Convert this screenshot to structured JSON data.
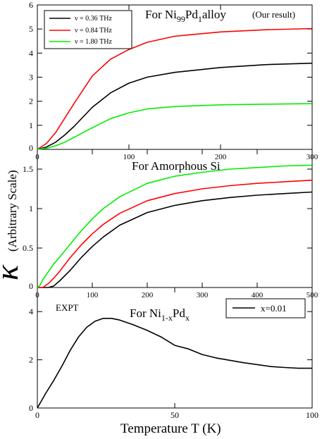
{
  "chart_data": [
    {
      "type": "line",
      "title_main": "For Ni",
      "title_sub1": "99",
      "title_mid": "Pd",
      "title_sub2": "1",
      "title_rest": "alloy",
      "title_note": "(Our result)",
      "xlim": [
        0,
        300
      ],
      "ylim": [
        0,
        6
      ],
      "xticks": [
        0,
        100,
        200,
        300
      ],
      "yticks": [
        0,
        1,
        2,
        3,
        4,
        5,
        6
      ],
      "legend_position": "top-left",
      "series": [
        {
          "name": "ν = 0.36 THz",
          "color": "#000000",
          "x": [
            0,
            10,
            20,
            30,
            40,
            60,
            80,
            100,
            120,
            150,
            200,
            250,
            300
          ],
          "y": [
            0,
            0.1,
            0.3,
            0.6,
            0.95,
            1.75,
            2.35,
            2.75,
            3.0,
            3.2,
            3.4,
            3.52,
            3.58
          ]
        },
        {
          "name": "ν = 0.84 THz",
          "color": "#ff0000",
          "x": [
            0,
            10,
            20,
            30,
            40,
            60,
            80,
            100,
            120,
            150,
            200,
            250,
            300
          ],
          "y": [
            0,
            0.25,
            0.7,
            1.3,
            1.9,
            3.05,
            3.75,
            4.15,
            4.45,
            4.7,
            4.88,
            4.97,
            5.02
          ]
        },
        {
          "name": "ν = 1.80 THz",
          "color": "#00ee00",
          "x": [
            0,
            10,
            20,
            30,
            40,
            60,
            80,
            100,
            120,
            150,
            200,
            250,
            300
          ],
          "y": [
            0,
            0.05,
            0.15,
            0.3,
            0.5,
            0.9,
            1.28,
            1.52,
            1.68,
            1.78,
            1.85,
            1.88,
            1.9
          ]
        }
      ]
    },
    {
      "type": "line",
      "title": "For Amorphous Si",
      "xlim": [
        0,
        500
      ],
      "ylim": [
        0,
        1.75
      ],
      "xticks": [
        0,
        100,
        200,
        300,
        400,
        500
      ],
      "yticks": [
        0,
        0.5,
        1,
        1.5
      ],
      "series": [
        {
          "color": "#000000",
          "x": [
            0,
            20,
            30,
            40,
            60,
            80,
            100,
            120,
            150,
            200,
            250,
            300,
            350,
            400,
            450,
            500
          ],
          "y": [
            0,
            0,
            0.02,
            0.08,
            0.22,
            0.38,
            0.52,
            0.64,
            0.79,
            0.95,
            1.04,
            1.1,
            1.14,
            1.17,
            1.19,
            1.21
          ]
        },
        {
          "color": "#ff0000",
          "x": [
            0,
            10,
            20,
            30,
            40,
            60,
            80,
            100,
            120,
            150,
            200,
            250,
            300,
            350,
            400,
            450,
            500
          ],
          "y": [
            0,
            0,
            0.05,
            0.12,
            0.2,
            0.38,
            0.54,
            0.68,
            0.8,
            0.94,
            1.1,
            1.19,
            1.25,
            1.29,
            1.32,
            1.34,
            1.36
          ]
        },
        {
          "color": "#00ee00",
          "x": [
            0,
            5,
            10,
            20,
            30,
            40,
            60,
            80,
            100,
            120,
            150,
            200,
            250,
            300,
            350,
            400,
            450,
            500
          ],
          "y": [
            0,
            0.03,
            0.1,
            0.2,
            0.3,
            0.38,
            0.55,
            0.72,
            0.87,
            1.0,
            1.15,
            1.32,
            1.41,
            1.46,
            1.5,
            1.52,
            1.54,
            1.55
          ]
        }
      ]
    },
    {
      "type": "line",
      "title_main": "For Ni",
      "title_sub1": "1-x",
      "title_mid": "Pd",
      "title_sub2": "x",
      "annotation": "EXPT",
      "xlim": [
        0,
        100
      ],
      "ylim": [
        0,
        5
      ],
      "xticks": [
        0,
        50,
        100
      ],
      "yticks": [
        0,
        2,
        4
      ],
      "legend_position": "top-right",
      "series": [
        {
          "name": "x=0.01",
          "color": "#000000",
          "x": [
            0,
            3,
            6,
            9,
            12,
            15,
            18,
            21,
            24,
            27,
            30,
            35,
            40,
            45,
            50,
            55,
            60,
            65,
            70,
            75,
            80,
            85,
            90,
            95,
            100
          ],
          "y": [
            0,
            0.6,
            1.15,
            1.75,
            2.4,
            2.95,
            3.35,
            3.6,
            3.72,
            3.72,
            3.65,
            3.45,
            3.22,
            2.95,
            2.6,
            2.45,
            2.22,
            2.08,
            1.98,
            1.88,
            1.8,
            1.72,
            1.68,
            1.65,
            1.65
          ]
        }
      ]
    }
  ],
  "axis": {
    "ylabel_kappa": "κ",
    "ylabel_text": "(Arbitrary  Scale)",
    "xlabel": "Temperature  T (K)"
  }
}
